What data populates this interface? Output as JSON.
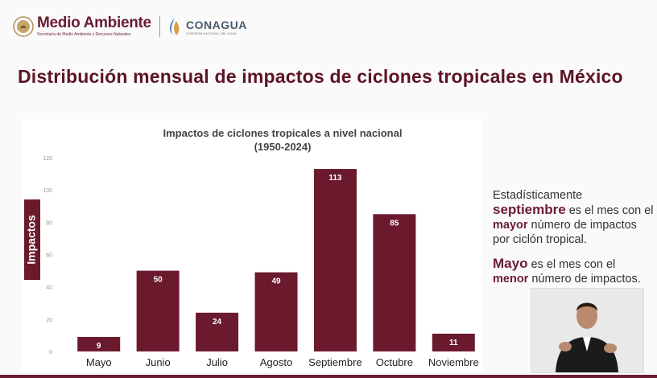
{
  "header": {
    "logo_main": "Medio Ambiente",
    "logo_sub": "Secretaría de Medio Ambiente y Recursos Naturales",
    "partner_name": "CONAGUA",
    "partner_sub": "COMISIÓN NACIONAL DEL AGUA"
  },
  "page_title": "Distribución mensual de impactos de ciclones tropicales en México",
  "side_text": {
    "p1_word": "Estadísticamente",
    "p1_bold": "septiembre",
    "p1_mid": " es el mes con el ",
    "p1_bold2": "mayor",
    "p1_end": " número de impactos por ciclón tropical.",
    "p2_bold": "Mayo",
    "p2_mid": " es el mes con el ",
    "p2_bold2": "menor",
    "p2_end": " número de impactos."
  },
  "colors": {
    "bar": "#6b1a2e",
    "accent": "#6b1d33",
    "title": "#5c1525"
  },
  "chart_data": {
    "type": "bar",
    "title": "Impactos de ciclones tropicales a nivel nacional",
    "subtitle": "(1950-2024)",
    "ylabel": "Impactos",
    "xlabel": "",
    "categories": [
      "Mayo",
      "Junio",
      "Julio",
      "Agosto",
      "Septiembre",
      "Octubre",
      "Noviembre"
    ],
    "values": [
      9,
      50,
      24,
      49,
      113,
      85,
      11
    ],
    "ylim": [
      0,
      120
    ],
    "yticks": [
      0,
      20,
      40,
      60,
      80,
      100,
      120
    ],
    "grid": false,
    "data_labels": true
  }
}
